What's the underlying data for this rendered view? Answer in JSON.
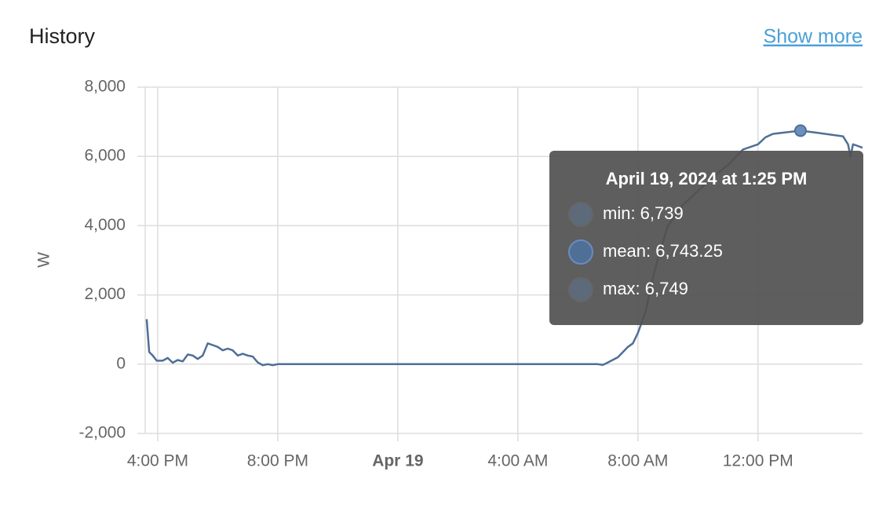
{
  "header": {
    "title": "History",
    "link": "Show more"
  },
  "chart_data": {
    "type": "line",
    "y_label": "W",
    "grid": true,
    "ylim": [
      -2000,
      8000
    ],
    "yticks": [
      {
        "value": -2000,
        "label": "-2,000"
      },
      0,
      {
        "value": 2000,
        "label": "2,000"
      },
      {
        "value": 4000,
        "label": "4,000"
      },
      {
        "value": 6000,
        "label": "6,000"
      },
      {
        "value": 8000,
        "label": "8,000"
      }
    ],
    "xlim": [
      "2024-04-18T15:35",
      "2024-04-19T15:29"
    ],
    "xticks": [
      {
        "value": "2024-04-18T16:00",
        "label": "4:00 PM"
      },
      {
        "value": "2024-04-18T20:00",
        "label": "8:00 PM"
      },
      {
        "value": "2024-04-19T00:00",
        "label": "Apr 19"
      },
      {
        "value": "2024-04-19T04:00",
        "label": "4:00 AM"
      },
      {
        "value": "2024-04-19T08:00",
        "label": "8:00 AM"
      },
      {
        "value": "2024-04-19T12:00",
        "label": "12:00 PM"
      }
    ],
    "series": [
      {
        "color": "#4f6f96",
        "x": [
          "2024-04-18T15:38",
          "2024-04-18T15:43",
          "2024-04-18T15:50",
          "2024-04-18T15:58",
          "2024-04-18T16:10",
          "2024-04-18T16:20",
          "2024-04-18T16:30",
          "2024-04-18T16:40",
          "2024-04-18T16:50",
          "2024-04-18T17:00",
          "2024-04-18T17:10",
          "2024-04-18T17:20",
          "2024-04-18T17:30",
          "2024-04-18T17:40",
          "2024-04-18T17:50",
          "2024-04-18T18:00",
          "2024-04-18T18:10",
          "2024-04-18T18:20",
          "2024-04-18T18:30",
          "2024-04-18T18:40",
          "2024-04-18T18:50",
          "2024-04-18T19:00",
          "2024-04-18T19:10",
          "2024-04-18T19:20",
          "2024-04-18T19:30",
          "2024-04-18T19:40",
          "2024-04-18T19:50",
          "2024-04-18T20:00",
          "2024-04-18T22:00",
          "2024-04-19T00:00",
          "2024-04-19T02:00",
          "2024-04-19T04:00",
          "2024-04-19T06:00",
          "2024-04-19T06:40",
          "2024-04-19T06:50",
          "2024-04-19T07:00",
          "2024-04-19T07:20",
          "2024-04-19T07:40",
          "2024-04-19T07:50",
          "2024-04-19T08:00",
          "2024-04-19T08:15",
          "2024-04-19T08:30",
          "2024-04-19T08:45",
          "2024-04-19T09:00",
          "2024-04-19T09:30",
          "2024-04-19T10:00",
          "2024-04-19T10:30",
          "2024-04-19T11:00",
          "2024-04-19T11:30",
          "2024-04-19T12:00",
          "2024-04-19T12:15",
          "2024-04-19T12:30",
          "2024-04-19T13:00",
          "2024-04-19T13:25",
          "2024-04-19T14:00",
          "2024-04-19T14:30",
          "2024-04-19T14:50",
          "2024-04-19T15:00",
          "2024-04-19T15:05",
          "2024-04-19T15:10",
          "2024-04-19T15:20",
          "2024-04-19T15:29"
        ],
        "values": [
          1300,
          350,
          250,
          100,
          100,
          180,
          40,
          120,
          80,
          280,
          250,
          150,
          250,
          600,
          550,
          500,
          400,
          450,
          400,
          250,
          300,
          250,
          220,
          50,
          -30,
          0,
          -30,
          0,
          0,
          0,
          0,
          0,
          0,
          0,
          -20,
          50,
          200,
          500,
          600,
          900,
          1500,
          2500,
          3300,
          4000,
          4600,
          5000,
          5400,
          5750,
          6200,
          6350,
          6550,
          6650,
          6700,
          6743.25,
          6680,
          6620,
          6580,
          6350,
          6000,
          6350,
          6300,
          6250
        ]
      }
    ],
    "tooltip": {
      "title": "April 19, 2024 at 1:25 PM",
      "items": [
        "min: 6,739",
        "mean: 6,743.25",
        "max: 6,749"
      ]
    }
  }
}
